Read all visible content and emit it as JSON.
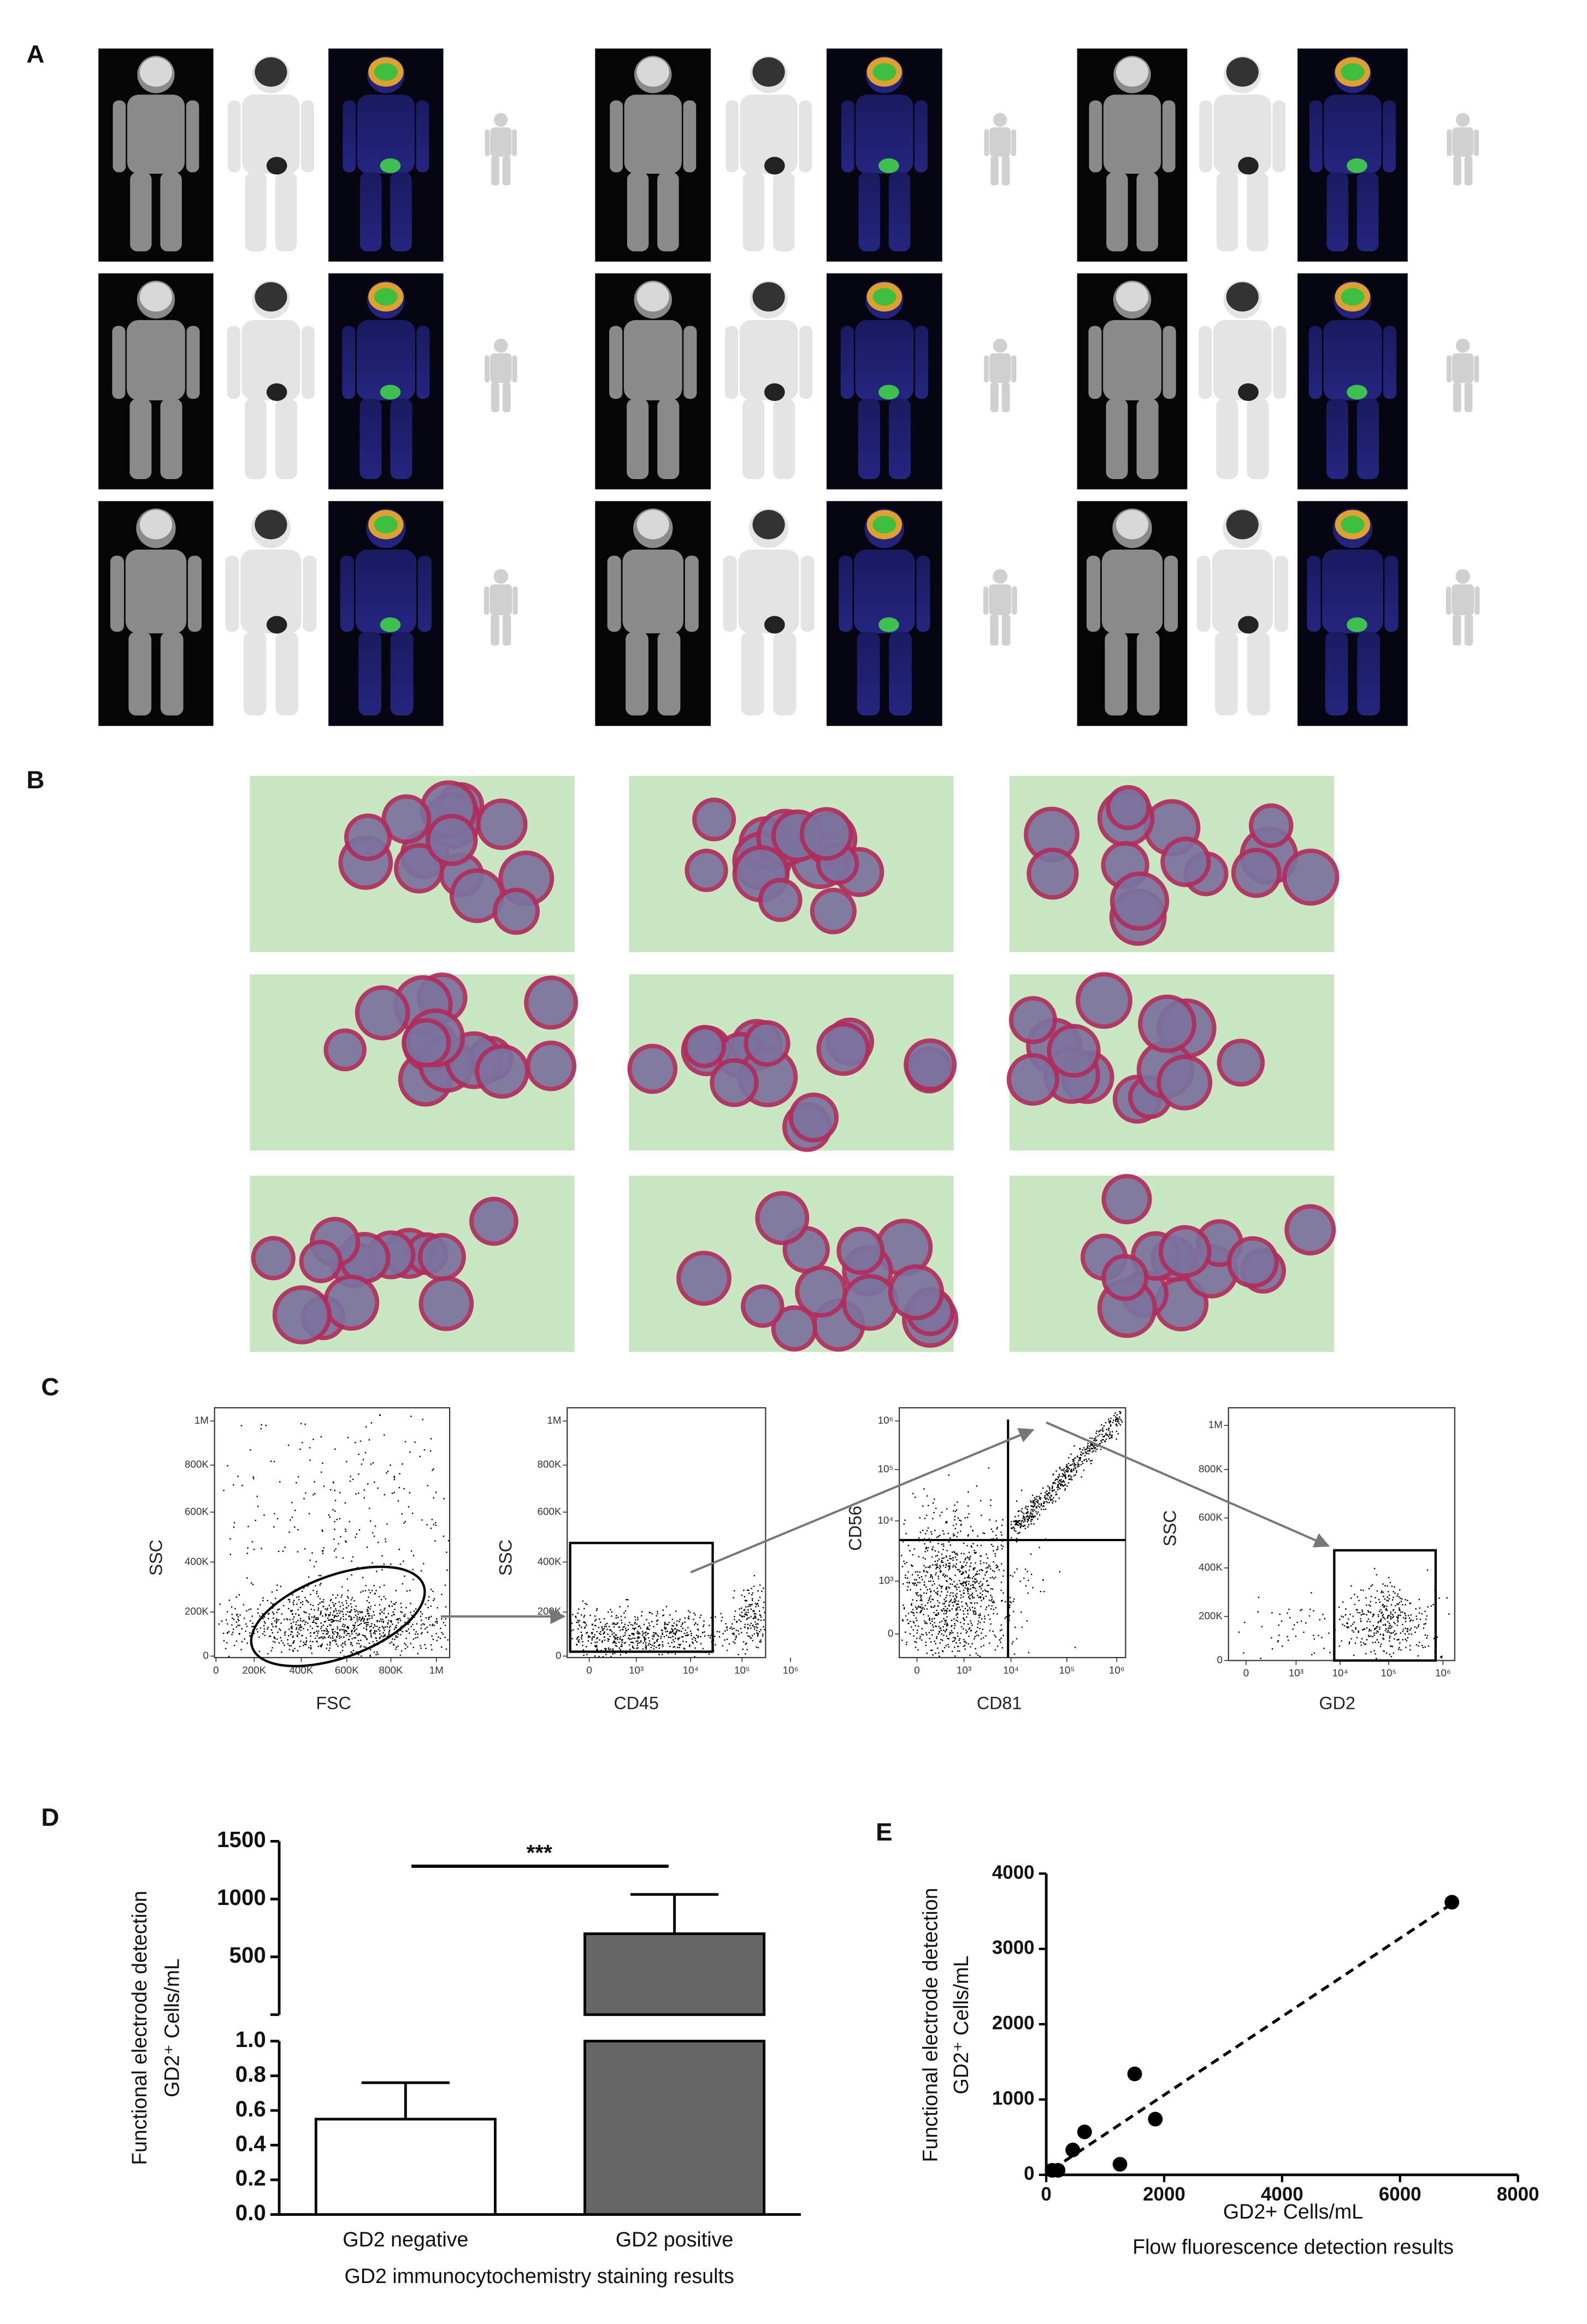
{
  "panel_labels": [
    "A",
    "B",
    "C",
    "D",
    "E"
  ],
  "flow_plots": [
    {
      "x_label": "FSC",
      "y_label": "SSC",
      "xticks": [
        0,
        {
          "value": 200000,
          "label": "200K"
        },
        {
          "value": 400000,
          "label": "400K"
        },
        {
          "value": 600000,
          "label": "600K"
        },
        {
          "value": 800000,
          "label": "800K"
        },
        {
          "value": 1000000,
          "label": "1M"
        }
      ],
      "yticks": [
        0,
        {
          "value": 200000,
          "label": "200K"
        },
        {
          "value": 400000,
          "label": "400K"
        },
        {
          "value": 600000,
          "label": "600K"
        },
        {
          "value": 800000,
          "label": "800K"
        },
        {
          "value": 1000000,
          "label": "1M"
        }
      ]
    },
    {
      "x_label": "CD45",
      "y_label": "SSC",
      "xticks": [
        0,
        {
          "value": 1000,
          "label": "10³"
        },
        {
          "value": 10000,
          "label": "10⁴"
        },
        {
          "value": 100000,
          "label": "10⁵"
        },
        {
          "value": 1000000,
          "label": "10⁶"
        }
      ],
      "yticks": [
        0,
        {
          "value": 200000,
          "label": "200K"
        },
        {
          "value": 400000,
          "label": "400K"
        },
        {
          "value": 600000,
          "label": "600K"
        },
        {
          "value": 800000,
          "label": "800K"
        },
        {
          "value": 1000000,
          "label": "1M"
        }
      ]
    },
    {
      "x_label": "CD81",
      "y_label": "CD56",
      "xticks": [
        0,
        {
          "value": 1000,
          "label": "10³"
        },
        {
          "value": 10000,
          "label": "10⁴"
        },
        {
          "value": 100000,
          "label": "10⁵"
        },
        {
          "value": 1000000,
          "label": "10⁶"
        }
      ],
      "yticks": [
        0,
        {
          "value": 1000,
          "label": "10³"
        },
        {
          "value": 10000,
          "label": "10⁴"
        },
        {
          "value": 100000,
          "label": "10⁵"
        },
        {
          "value": 1000000,
          "label": "10⁶"
        }
      ]
    },
    {
      "x_label": "GD2",
      "y_label": "SSC",
      "xticks": [
        0,
        {
          "value": 1000,
          "label": "10³"
        },
        {
          "value": 10000,
          "label": "10⁴"
        },
        {
          "value": 100000,
          "label": "10⁵"
        },
        {
          "value": 1000000,
          "label": "10⁶"
        }
      ],
      "yticks": [
        0,
        {
          "value": 200000,
          "label": "200K"
        },
        {
          "value": 400000,
          "label": "400K"
        },
        {
          "value": 600000,
          "label": "600K"
        },
        {
          "value": 800000,
          "label": "800K"
        },
        {
          "value": 1000000,
          "label": "1M"
        }
      ]
    }
  ],
  "chart_data": [
    {
      "type": "bar",
      "categories": [
        "GD2 negative",
        "GD2 positive"
      ],
      "values": [
        0.55,
        700
      ],
      "errors": [
        0.21,
        340
      ],
      "colors": [
        "#ffffff",
        "#666666"
      ],
      "ylabel": [
        "Functional electrode detection",
        "GD2⁺ Cells/mL"
      ],
      "xlabel": "GD2 immunocytochemistry staining results",
      "annotation": "***",
      "ylim": [
        0,
        1
      ],
      "yticks": [
        {
          "value": 0,
          "label": "0.0"
        },
        0.2,
        0.4,
        0.6,
        0.8,
        {
          "value": 1,
          "label": "1.0"
        }
      ],
      "y_break": {
        "ylim": [
          0,
          1500
        ],
        "yticks": [
          500,
          1000,
          1500
        ]
      }
    },
    {
      "type": "scatter",
      "x": [
        100,
        200,
        450,
        650,
        1250,
        1500,
        1850,
        6880
      ],
      "values": [
        60,
        60,
        330,
        570,
        140,
        1340,
        740,
        3620
      ],
      "color": "#000000",
      "fit_line": "dashed",
      "ylabel": [
        "Functional electrode detection",
        "GD2⁺ Cells/mL"
      ],
      "xlabel": [
        "GD2+ Cells/mL",
        "Flow fluorescence detection results"
      ],
      "xlim": [
        0,
        8000
      ],
      "ylim": [
        0,
        4000
      ],
      "xticks": [
        0,
        2000,
        4000,
        6000,
        8000
      ],
      "yticks": [
        0,
        1000,
        2000,
        3000,
        4000
      ]
    }
  ]
}
